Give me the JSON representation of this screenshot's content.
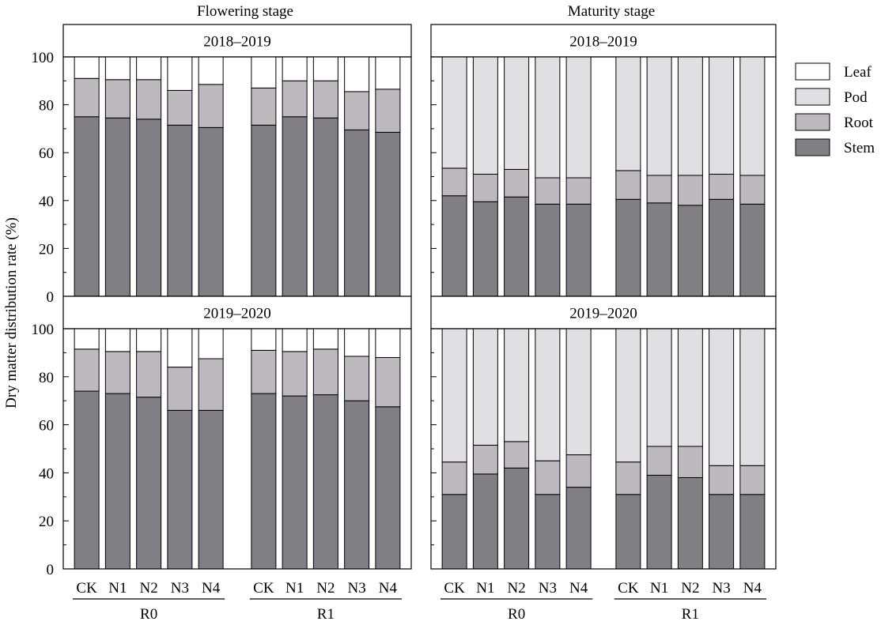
{
  "figure": {
    "column_titles": [
      "Flowering stage",
      "Maturity stage"
    ],
    "row_titles": [
      "2018–2019",
      "2019–2020"
    ],
    "ylabel": "Dry matter distribution rate (%)",
    "group_labels": [
      "R0",
      "R1"
    ]
  },
  "legend": {
    "items": [
      {
        "label": "Leaf",
        "color": "#ffffff"
      },
      {
        "label": "Pod",
        "color": "#e0dfe2"
      },
      {
        "label": "Root",
        "color": "#bdb9be"
      },
      {
        "label": "Stem",
        "color": "#807f83"
      }
    ]
  },
  "chart_data": [
    {
      "type": "bar",
      "stacked": true,
      "normalized": true,
      "column_title": "Flowering stage",
      "panel_title": "2018–2019",
      "groups": [
        "R0",
        "R1"
      ],
      "categories": [
        "CK",
        "N1",
        "N2",
        "N3",
        "N4",
        "CK",
        "N1",
        "N2",
        "N3",
        "N4"
      ],
      "ylim": [
        0,
        100
      ],
      "yticks": [
        0,
        20,
        40,
        60,
        80,
        100
      ],
      "series": [
        {
          "name": "Stem",
          "values": [
            75,
            74.5,
            74,
            71.5,
            70.5,
            71.5,
            75,
            74.5,
            69.5,
            68.5
          ]
        },
        {
          "name": "Root",
          "values": [
            16,
            16,
            16.5,
            14.5,
            18,
            15.5,
            15,
            15.5,
            16,
            18
          ]
        },
        {
          "name": "Pod",
          "values": [
            0,
            0,
            0,
            0,
            0,
            0,
            0,
            0,
            0,
            0
          ]
        },
        {
          "name": "Leaf",
          "values": [
            9,
            9.5,
            9.5,
            14,
            11.5,
            13,
            10,
            10,
            14.5,
            13.5
          ]
        }
      ]
    },
    {
      "type": "bar",
      "stacked": true,
      "normalized": true,
      "column_title": "Maturity stage",
      "panel_title": "2018–2019",
      "groups": [
        "R0",
        "R1"
      ],
      "categories": [
        "CK",
        "N1",
        "N2",
        "N3",
        "N4",
        "CK",
        "N1",
        "N2",
        "N3",
        "N4"
      ],
      "ylim": [
        0,
        100
      ],
      "yticks": [
        0,
        20,
        40,
        60,
        80,
        100
      ],
      "series": [
        {
          "name": "Stem",
          "values": [
            42,
            39.5,
            41.5,
            38.5,
            38.5,
            40.5,
            39,
            38,
            40.5,
            38.5
          ]
        },
        {
          "name": "Root",
          "values": [
            11.5,
            11.5,
            11.5,
            11,
            11,
            12,
            11.5,
            12.5,
            10.5,
            12
          ]
        },
        {
          "name": "Pod",
          "values": [
            46.5,
            49,
            47,
            50.5,
            50.5,
            47.5,
            49.5,
            49.5,
            49,
            49.5
          ]
        },
        {
          "name": "Leaf",
          "values": [
            0,
            0,
            0,
            0,
            0,
            0,
            0,
            0,
            0,
            0
          ]
        }
      ]
    },
    {
      "type": "bar",
      "stacked": true,
      "normalized": true,
      "column_title": "Flowering stage",
      "panel_title": "2019–2020",
      "groups": [
        "R0",
        "R1"
      ],
      "categories": [
        "CK",
        "N1",
        "N2",
        "N3",
        "N4",
        "CK",
        "N1",
        "N2",
        "N3",
        "N4"
      ],
      "ylim": [
        0,
        100
      ],
      "yticks": [
        0,
        20,
        40,
        60,
        80,
        100
      ],
      "series": [
        {
          "name": "Stem",
          "values": [
            74,
            73,
            71.5,
            66,
            66,
            73,
            72,
            72.5,
            70,
            67.5
          ]
        },
        {
          "name": "Root",
          "values": [
            17.5,
            17.5,
            19,
            18,
            21.5,
            18,
            18.5,
            19,
            18.5,
            20.5
          ]
        },
        {
          "name": "Pod",
          "values": [
            0,
            0,
            0,
            0,
            0,
            0,
            0,
            0,
            0,
            0
          ]
        },
        {
          "name": "Leaf",
          "values": [
            8.5,
            9.5,
            9.5,
            16,
            12.5,
            9,
            9.5,
            8.5,
            11.5,
            12
          ]
        }
      ]
    },
    {
      "type": "bar",
      "stacked": true,
      "normalized": true,
      "column_title": "Maturity stage",
      "panel_title": "2019–2020",
      "groups": [
        "R0",
        "R1"
      ],
      "categories": [
        "CK",
        "N1",
        "N2",
        "N3",
        "N4",
        "CK",
        "N1",
        "N2",
        "N3",
        "N4"
      ],
      "ylim": [
        0,
        100
      ],
      "yticks": [
        0,
        20,
        40,
        60,
        80,
        100
      ],
      "series": [
        {
          "name": "Stem",
          "values": [
            31,
            39.5,
            42,
            31,
            34,
            31,
            39,
            38,
            31,
            31
          ]
        },
        {
          "name": "Root",
          "values": [
            13.5,
            12,
            11,
            14,
            13.5,
            13.5,
            12,
            13,
            12,
            12
          ]
        },
        {
          "name": "Pod",
          "values": [
            55.5,
            48.5,
            47,
            55,
            52.5,
            55.5,
            49,
            49,
            57,
            57
          ]
        },
        {
          "name": "Leaf",
          "values": [
            0,
            0,
            0,
            0,
            0,
            0,
            0,
            0,
            0,
            0
          ]
        }
      ]
    }
  ]
}
